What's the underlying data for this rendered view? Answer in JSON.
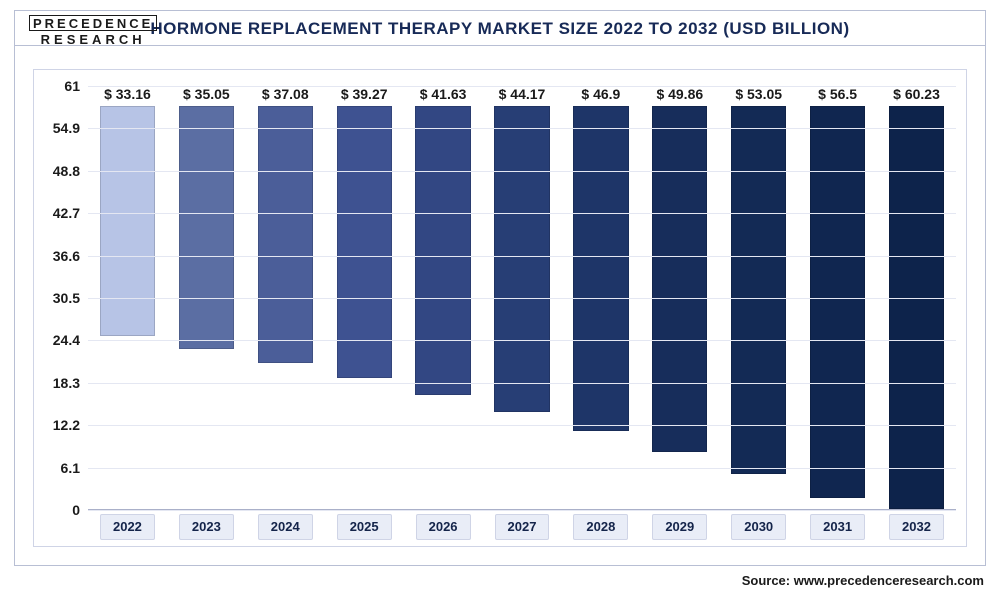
{
  "logo": {
    "line1": "PRECEDENCE",
    "line2": "RESEARCH"
  },
  "chart": {
    "type": "bar",
    "title": "HORMONE REPLACEMENT THERAPY MARKET SIZE 2022 TO 2032 (USD BILLION)",
    "categories": [
      "2022",
      "2023",
      "2024",
      "2025",
      "2026",
      "2027",
      "2028",
      "2029",
      "2030",
      "2031",
      "2032"
    ],
    "values": [
      33.16,
      35.05,
      37.08,
      39.27,
      41.63,
      44.17,
      46.9,
      49.86,
      53.05,
      56.5,
      60.23
    ],
    "value_labels": [
      "$ 33.16",
      "$ 35.05",
      "$ 37.08",
      "$ 39.27",
      "$ 41.63",
      "$ 44.17",
      "$ 46.9",
      "$ 49.86",
      "$ 53.05",
      "$ 56.5",
      "$ 60.23"
    ],
    "bar_colors": [
      "#b7c4e6",
      "#5b6ea3",
      "#4b5e99",
      "#3e5291",
      "#324783",
      "#273e75",
      "#1e3568",
      "#172d5b",
      "#132a55",
      "#102650",
      "#0d234b"
    ],
    "ylim": [
      0,
      61
    ],
    "yticks": [
      0,
      6.1,
      12.2,
      18.3,
      24.4,
      30.5,
      36.6,
      42.7,
      48.8,
      54.9,
      61
    ],
    "ytick_labels": [
      "0",
      "6.1",
      "12.2",
      "18.3",
      "24.4",
      "30.5",
      "36.6",
      "42.7",
      "48.8",
      "54.9",
      "61"
    ],
    "bar_width": 0.7,
    "title_fontsize": 17,
    "label_fontsize": 14,
    "background_color": "#ffffff",
    "grid_color": "#e4e7f2",
    "frame_border_color": "#b8bfd4",
    "x_label_bg": "#e9edf7",
    "title_color": "#172a57"
  },
  "source": {
    "label": "Source: www.precedenceresearch.com"
  }
}
